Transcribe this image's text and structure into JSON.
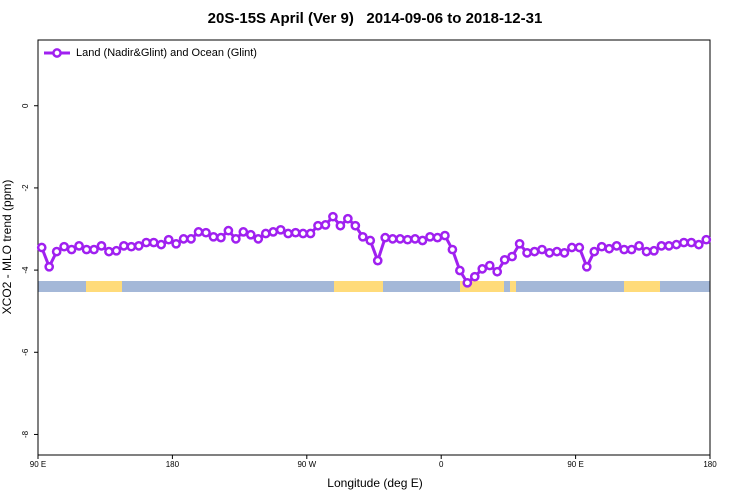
{
  "chart_data": {
    "type": "line",
    "title": "20S-15S April (Ver 9)   2014-09-06 to 2018-12-31",
    "x_label": "Longitude (deg E)",
    "y_label": "XCO2 - MLO trend (ppm)",
    "legend_position": "top-left",
    "xlim": [
      90,
      540
    ],
    "ylim": [
      -8.5,
      1.6
    ],
    "xticks": [
      {
        "value": 90,
        "label": "90 E"
      },
      180,
      {
        "value": 270,
        "label": "90 W"
      },
      {
        "value": 360,
        "label": "0"
      },
      {
        "value": 450,
        "label": "90 E"
      },
      {
        "value": 540,
        "label": "180"
      }
    ],
    "yticks": [
      0,
      -2,
      -4,
      -6,
      -8
    ],
    "x": [
      92.5,
      97.5,
      102.5,
      107.5,
      112.5,
      117.5,
      122.5,
      127.5,
      132.5,
      137.5,
      142.5,
      147.5,
      152.5,
      157.5,
      162.5,
      167.5,
      172.5,
      177.5,
      182.5,
      187.5,
      192.5,
      197.5,
      202.5,
      207.5,
      212.5,
      217.5,
      222.5,
      227.5,
      232.5,
      237.5,
      242.5,
      247.5,
      252.5,
      257.5,
      262.5,
      267.5,
      272.5,
      277.5,
      282.5,
      287.5,
      292.5,
      297.5,
      302.5,
      307.5,
      312.5,
      317.5,
      322.5,
      327.5,
      332.5,
      337.5,
      342.5,
      347.5,
      352.5,
      357.5,
      362.5,
      367.5,
      372.5,
      377.5,
      382.5,
      387.5,
      392.5,
      397.5,
      402.5,
      407.5,
      412.5,
      417.5,
      422.5,
      427.5,
      432.5,
      437.5,
      442.5,
      447.5,
      452.5,
      457.5,
      462.5,
      467.5,
      472.5,
      477.5,
      482.5,
      487.5,
      492.5,
      497.5,
      502.5,
      507.5,
      512.5,
      517.5,
      522.5,
      527.5,
      532.5,
      537.5
    ],
    "series": [
      {
        "name": "Land (Nadir&Glint) and Ocean (Glint)",
        "color": "#a020f0",
        "values": [
          -3.45,
          -3.92,
          -3.55,
          -3.43,
          -3.5,
          -3.41,
          -3.5,
          -3.5,
          -3.41,
          -3.55,
          -3.53,
          -3.41,
          -3.43,
          -3.41,
          -3.33,
          -3.33,
          -3.38,
          -3.26,
          -3.36,
          -3.24,
          -3.24,
          -3.07,
          -3.09,
          -3.19,
          -3.21,
          -3.04,
          -3.24,
          -3.07,
          -3.14,
          -3.24,
          -3.11,
          -3.07,
          -3.02,
          -3.11,
          -3.09,
          -3.11,
          -3.11,
          -2.92,
          -2.9,
          -2.7,
          -2.92,
          -2.75,
          -2.92,
          -3.19,
          -3.28,
          -3.77,
          -3.21,
          -3.24,
          -3.24,
          -3.26,
          -3.24,
          -3.28,
          -3.19,
          -3.21,
          -3.16,
          -3.5,
          -4.01,
          -4.31,
          -4.16,
          -3.97,
          -3.89,
          -4.04,
          -3.75,
          -3.67,
          -3.36,
          -3.58,
          -3.55,
          -3.5,
          -3.58,
          -3.55,
          -3.58,
          -3.45,
          -3.45,
          -3.92,
          -3.55,
          -3.43,
          -3.48,
          -3.41,
          -3.5,
          -3.5,
          -3.41,
          -3.55,
          -3.53,
          -3.41,
          -3.41,
          -3.38,
          -3.33,
          -3.33,
          -3.38,
          -3.26
        ]
      }
    ]
  }
}
